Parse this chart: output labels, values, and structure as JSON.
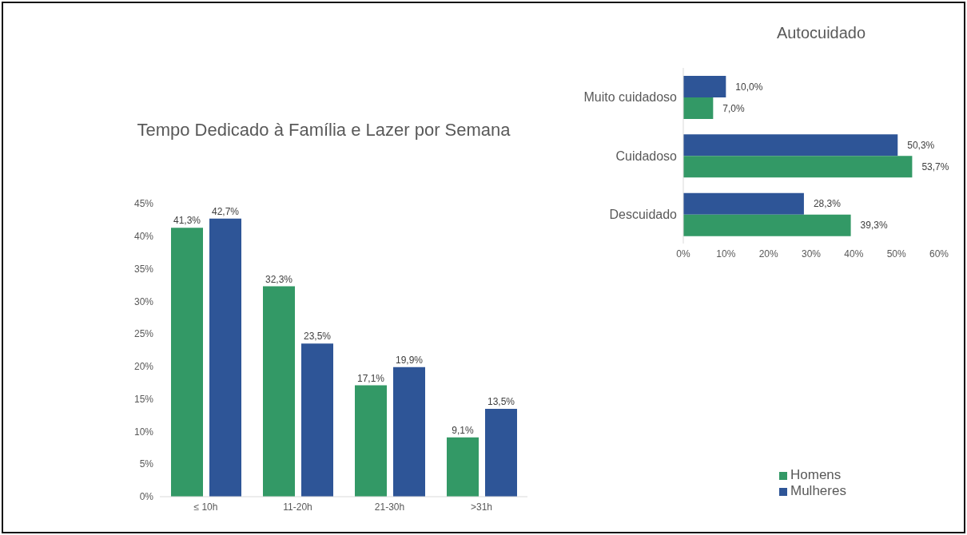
{
  "chart_data": [
    {
      "type": "bar",
      "title": "Tempo Dedicado à Família e Lazer por Semana",
      "categories": [
        "≤ 10h",
        "11-20h",
        "21-30h",
        ">31h"
      ],
      "series": [
        {
          "name": "Homens",
          "color": "#339966",
          "values": [
            41.3,
            32.3,
            17.1,
            9.1
          ],
          "value_labels": [
            "41,3%",
            "32,3%",
            "17,1%",
            "9,1%"
          ]
        },
        {
          "name": "Mulheres",
          "color": "#2e5597",
          "values": [
            42.7,
            23.5,
            19.9,
            13.5
          ],
          "value_labels": [
            "42,7%",
            "23,5%",
            "19,9%",
            "13,5%"
          ]
        }
      ],
      "ylim": [
        0,
        45
      ],
      "yticks": [
        {
          "value": 0,
          "label": "0%"
        },
        {
          "value": 5,
          "label": "5%"
        },
        {
          "value": 10,
          "label": "10%"
        },
        {
          "value": 15,
          "label": "15%"
        },
        {
          "value": 20,
          "label": "20%"
        },
        {
          "value": 25,
          "label": "25%"
        },
        {
          "value": 30,
          "label": "30%"
        },
        {
          "value": 35,
          "label": "35%"
        },
        {
          "value": 40,
          "label": "40%"
        },
        {
          "value": 45,
          "label": "45%"
        }
      ],
      "legend": "right"
    },
    {
      "type": "bar",
      "title": "Autocuidado",
      "orientation": "horizontal",
      "categories": [
        "Muito cuidadoso",
        "Cuidadoso",
        "Descuidado"
      ],
      "series": [
        {
          "color": "#2e5597",
          "values": [
            10.0,
            50.3,
            28.3
          ],
          "value_labels": [
            "10,0%",
            "50,3%",
            "28,3%"
          ]
        },
        {
          "color": "#339966",
          "values": [
            7.0,
            53.7,
            39.3
          ],
          "value_labels": [
            "7,0%",
            "53,7%",
            "39,3%"
          ]
        }
      ],
      "xlim": [
        0,
        60
      ],
      "xticks": [
        {
          "value": 0,
          "label": "0%"
        },
        {
          "value": 10,
          "label": "10%"
        },
        {
          "value": 20,
          "label": "20%"
        },
        {
          "value": 30,
          "label": "30%"
        },
        {
          "value": 40,
          "label": "40%"
        },
        {
          "value": 50,
          "label": "50%"
        },
        {
          "value": 60,
          "label": "60%"
        }
      ]
    }
  ]
}
